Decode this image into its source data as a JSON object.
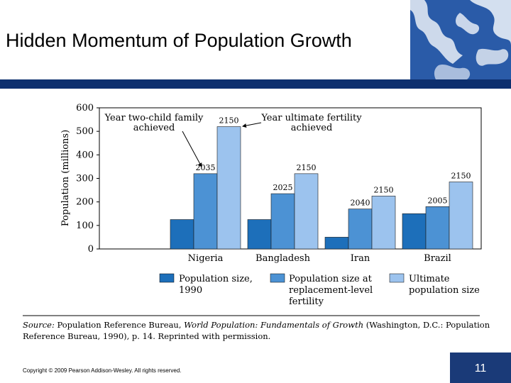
{
  "slide": {
    "title": "Hidden Momentum of Population Growth",
    "copyright": "Copyright © 2009 Pearson Addison-Wesley. All rights reserved.",
    "page_number": "11"
  },
  "colors": {
    "series1": "#1d6fba",
    "series2": "#4c92d4",
    "series3": "#9cc3ee",
    "topbar": "#0d2f6e",
    "page_box": "#1a3a78"
  },
  "chart_data": {
    "type": "bar",
    "ylabel": "Population (millions)",
    "ylim": [
      0,
      600
    ],
    "yticks": [
      0,
      100,
      200,
      300,
      400,
      500,
      600
    ],
    "categories": [
      "Nigeria",
      "Bangladesh",
      "Iran",
      "Brazil"
    ],
    "series": [
      {
        "name": "Population size, 1990",
        "values": [
          125,
          125,
          50,
          150
        ]
      },
      {
        "name": "Population size at replacement-level fertility",
        "values": [
          320,
          235,
          170,
          180
        ],
        "labels": [
          "2035",
          "2025",
          "2040",
          "2005"
        ]
      },
      {
        "name": "Ultimate population size",
        "values": [
          520,
          320,
          225,
          285
        ],
        "labels": [
          "2150",
          "2150",
          "2150",
          "2150"
        ]
      }
    ],
    "legend": [
      {
        "line1": "Population size,",
        "line2": "1990",
        "line3": ""
      },
      {
        "line1": "Population size at",
        "line2": "replacement-level",
        "line3": "fertility"
      },
      {
        "line1": "Ultimate",
        "line2": "population size",
        "line3": ""
      }
    ],
    "annotations": {
      "left_line1": "Year two-child family",
      "left_line2": "achieved",
      "right_line1": "Year ultimate fertility",
      "right_line2": "achieved"
    },
    "source": {
      "line1_label": "Source:",
      "line1_a": " Population Reference Bureau, ",
      "line1_italic": "World Population: Fundamentals of Growth",
      "line1_b": " (Washington, D.C.: Population",
      "line2": "Reference Bureau, 1990), p. 14. Reprinted with permission."
    }
  }
}
